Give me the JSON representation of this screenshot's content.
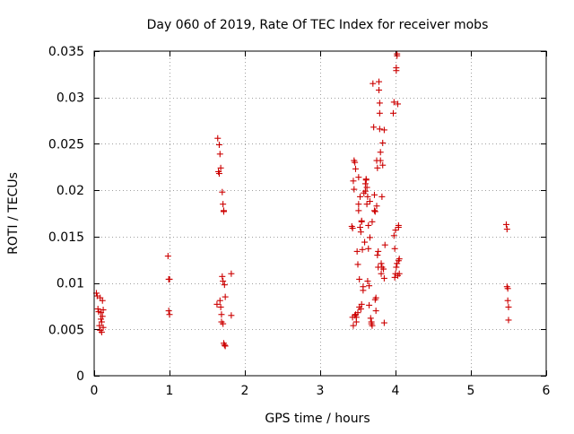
{
  "chart_data": {
    "type": "scatter",
    "title": "Day 060 of 2019, Rate Of TEC Index for receiver mobs",
    "xlabel": "GPS time / hours",
    "ylabel": "ROTI / TECUs",
    "xlim": [
      0,
      6
    ],
    "ylim": [
      0,
      0.035
    ],
    "x_ticks": [
      0,
      1,
      2,
      3,
      4,
      5,
      6
    ],
    "x_tick_labels": [
      "0",
      "1",
      "2",
      "3",
      "4",
      "5",
      "6"
    ],
    "y_ticks": [
      0,
      0.005,
      0.01,
      0.015,
      0.02,
      0.025,
      0.03,
      0.035
    ],
    "y_tick_labels": [
      "0",
      "0.005",
      "0.01",
      "0.015",
      "0.02",
      "0.025",
      "0.03",
      "0.035"
    ],
    "grid": true,
    "marker": "+",
    "color": "#cc0000",
    "series": [
      {
        "name": "ROTI",
        "points": [
          [
            0.03,
            0.0089
          ],
          [
            0.04,
            0.0086
          ],
          [
            0.05,
            0.0072
          ],
          [
            0.06,
            0.0069
          ],
          [
            0.07,
            0.0054
          ],
          [
            0.08,
            0.0049
          ],
          [
            0.08,
            0.0084
          ],
          [
            0.09,
            0.0068
          ],
          [
            0.09,
            0.0061
          ],
          [
            0.1,
            0.0047
          ],
          [
            0.1,
            0.0058
          ],
          [
            0.11,
            0.0081
          ],
          [
            0.11,
            0.0064
          ],
          [
            0.12,
            0.0071
          ],
          [
            0.12,
            0.0052
          ],
          [
            0.98,
            0.0129
          ],
          [
            0.99,
            0.0104
          ],
          [
            1.0,
            0.0104
          ],
          [
            0.99,
            0.007
          ],
          [
            1.0,
            0.0066
          ],
          [
            1.63,
            0.0077
          ],
          [
            1.64,
            0.0256
          ],
          [
            1.65,
            0.022
          ],
          [
            1.66,
            0.0249
          ],
          [
            1.66,
            0.0218
          ],
          [
            1.67,
            0.0239
          ],
          [
            1.67,
            0.0081
          ],
          [
            1.68,
            0.0224
          ],
          [
            1.68,
            0.0074
          ],
          [
            1.69,
            0.0066
          ],
          [
            1.69,
            0.0058
          ],
          [
            1.7,
            0.0107
          ],
          [
            1.7,
            0.0198
          ],
          [
            1.71,
            0.0102
          ],
          [
            1.71,
            0.0185
          ],
          [
            1.71,
            0.0056
          ],
          [
            1.72,
            0.0177
          ],
          [
            1.72,
            0.0178
          ],
          [
            1.72,
            0.0035
          ],
          [
            1.73,
            0.0033
          ],
          [
            1.73,
            0.0098
          ],
          [
            1.74,
            0.0085
          ],
          [
            1.74,
            0.0032
          ],
          [
            1.82,
            0.011
          ],
          [
            1.82,
            0.0065
          ],
          [
            3.42,
            0.0161
          ],
          [
            3.43,
            0.0159
          ],
          [
            3.43,
            0.0063
          ],
          [
            3.44,
            0.0054
          ],
          [
            3.44,
            0.021
          ],
          [
            3.45,
            0.0201
          ],
          [
            3.45,
            0.0232
          ],
          [
            3.46,
            0.0065
          ],
          [
            3.46,
            0.023
          ],
          [
            3.47,
            0.0223
          ],
          [
            3.47,
            0.0066
          ],
          [
            3.48,
            0.0058
          ],
          [
            3.48,
            0.0063
          ],
          [
            3.49,
            0.0134
          ],
          [
            3.5,
            0.0068
          ],
          [
            3.5,
            0.012
          ],
          [
            3.51,
            0.0178
          ],
          [
            3.51,
            0.0214
          ],
          [
            3.51,
            0.0185
          ],
          [
            3.52,
            0.0074
          ],
          [
            3.52,
            0.0104
          ],
          [
            3.53,
            0.016
          ],
          [
            3.53,
            0.0193
          ],
          [
            3.54,
            0.0155
          ],
          [
            3.54,
            0.0072
          ],
          [
            3.55,
            0.0167
          ],
          [
            3.55,
            0.0166
          ],
          [
            3.55,
            0.0077
          ],
          [
            3.56,
            0.0136
          ],
          [
            3.57,
            0.0092
          ],
          [
            3.57,
            0.0096
          ],
          [
            3.58,
            0.0197
          ],
          [
            3.59,
            0.0144
          ],
          [
            3.6,
            0.0207
          ],
          [
            3.6,
            0.0199
          ],
          [
            3.61,
            0.0212
          ],
          [
            3.61,
            0.0211
          ],
          [
            3.62,
            0.0203
          ],
          [
            3.62,
            0.0185
          ],
          [
            3.63,
            0.0193
          ],
          [
            3.63,
            0.0102
          ],
          [
            3.64,
            0.0162
          ],
          [
            3.64,
            0.0137
          ],
          [
            3.65,
            0.0097
          ],
          [
            3.65,
            0.0076
          ],
          [
            3.66,
            0.0188
          ],
          [
            3.66,
            0.0149
          ],
          [
            3.67,
            0.0062
          ],
          [
            3.68,
            0.0056
          ],
          [
            3.68,
            0.0058
          ],
          [
            3.69,
            0.0166
          ],
          [
            3.69,
            0.0054
          ],
          [
            3.7,
            0.0315
          ],
          [
            3.71,
            0.0268
          ],
          [
            3.72,
            0.0195
          ],
          [
            3.72,
            0.0178
          ],
          [
            3.73,
            0.0177
          ],
          [
            3.73,
            0.0082
          ],
          [
            3.74,
            0.007
          ],
          [
            3.74,
            0.0084
          ],
          [
            3.75,
            0.0183
          ],
          [
            3.75,
            0.0232
          ],
          [
            3.76,
            0.013
          ],
          [
            3.76,
            0.0224
          ],
          [
            3.77,
            0.0134
          ],
          [
            3.77,
            0.0117
          ],
          [
            3.78,
            0.0317
          ],
          [
            3.78,
            0.0308
          ],
          [
            3.79,
            0.0294
          ],
          [
            3.79,
            0.0283
          ],
          [
            3.79,
            0.0266
          ],
          [
            3.8,
            0.0241
          ],
          [
            3.8,
            0.0232
          ],
          [
            3.81,
            0.0121
          ],
          [
            3.81,
            0.011
          ],
          [
            3.82,
            0.0193
          ],
          [
            3.82,
            0.0117
          ],
          [
            3.83,
            0.0251
          ],
          [
            3.83,
            0.0227
          ],
          [
            3.84,
            0.0115
          ],
          [
            3.85,
            0.0265
          ],
          [
            3.85,
            0.0057
          ],
          [
            3.85,
            0.0105
          ],
          [
            3.86,
            0.0141
          ],
          [
            3.97,
            0.0283
          ],
          [
            3.98,
            0.0295
          ],
          [
            3.98,
            0.0151
          ],
          [
            3.99,
            0.0137
          ],
          [
            3.99,
            0.0106
          ],
          [
            4.0,
            0.011
          ],
          [
            4.0,
            0.0157
          ],
          [
            4.01,
            0.0332
          ],
          [
            4.01,
            0.0329
          ],
          [
            4.01,
            0.0117
          ],
          [
            4.02,
            0.0347
          ],
          [
            4.02,
            0.0345
          ],
          [
            4.02,
            0.0121
          ],
          [
            4.03,
            0.0108
          ],
          [
            4.03,
            0.0293
          ],
          [
            4.04,
            0.0162
          ],
          [
            4.04,
            0.0124
          ],
          [
            4.04,
            0.016
          ],
          [
            4.05,
            0.0126
          ],
          [
            4.05,
            0.011
          ],
          [
            5.47,
            0.0163
          ],
          [
            5.48,
            0.0158
          ],
          [
            5.48,
            0.0096
          ],
          [
            5.49,
            0.0094
          ],
          [
            5.49,
            0.0081
          ],
          [
            5.5,
            0.0074
          ],
          [
            5.5,
            0.006
          ]
        ]
      }
    ]
  }
}
